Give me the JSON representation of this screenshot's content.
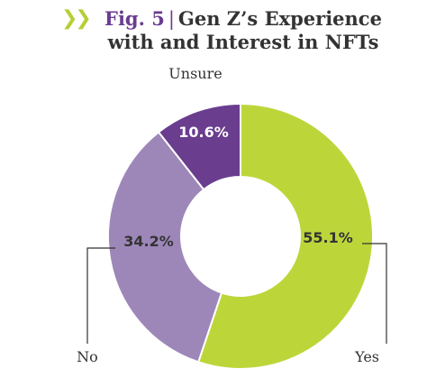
{
  "figure_label": "Fig. 5",
  "title_line1": "Gen Z’s Experience",
  "title_line2": "with and Interest in NFTs",
  "arrows_glyph": "❯❯",
  "colors": {
    "arrows": "#b5cf35",
    "title_text": "#333333",
    "figure_label": "#6a3d8f",
    "leader_line": "#333333"
  },
  "chart_data": {
    "type": "pie",
    "donut": true,
    "title": "Gen Z’s Experience with and Interest in NFTs",
    "slices": [
      {
        "label": "Yes",
        "value": 55.1,
        "display": "55.1%",
        "color": "#bcd63a",
        "text_color": "#333333"
      },
      {
        "label": "No",
        "value": 34.2,
        "display": "34.2%",
        "color": "#9d87b9",
        "text_color": "#333333"
      },
      {
        "label": "Unsure",
        "value": 10.6,
        "display": "10.6%",
        "color": "#6a3d8f",
        "text_color": "#ffffff"
      }
    ],
    "legend": "none"
  }
}
